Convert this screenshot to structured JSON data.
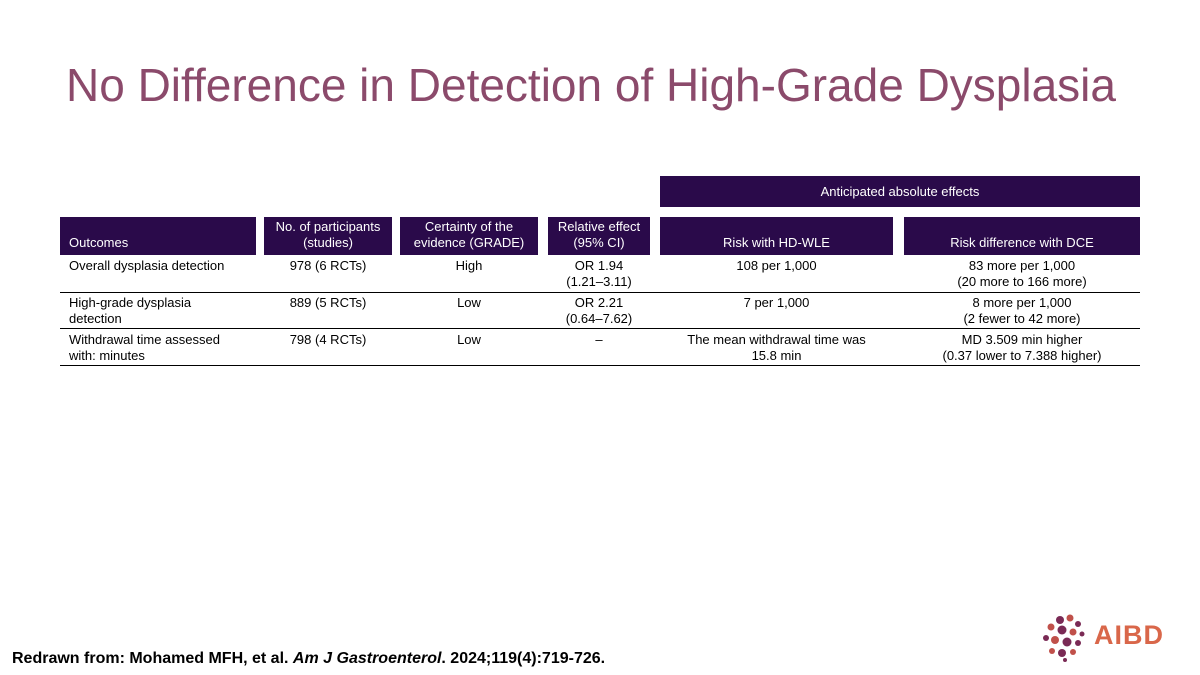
{
  "title": "No Difference in Detection of High-Grade Dysplasia",
  "table": {
    "span_header": "Anticipated absolute effects",
    "headers": {
      "outcomes": "Outcomes",
      "participants_1": "No. of participants",
      "participants_2": "(studies)",
      "certainty_1": "Certainty of the",
      "certainty_2": "evidence (GRADE)",
      "relative_1": "Relative effect",
      "relative_2": "(95% CI)",
      "risk_hdwle": "Risk with HD-WLE",
      "risk_diff": "Risk difference with DCE"
    },
    "rows": [
      {
        "outcome_1": "Overall dysplasia detection",
        "outcome_2": "",
        "participants": "978 (6 RCTs)",
        "certainty": "High",
        "relative_1": "OR 1.94",
        "relative_2": "(1.21–3.11)",
        "risk_hdwle_1": "108 per 1,000",
        "risk_hdwle_2": "",
        "risk_diff_1": "83 more per 1,000",
        "risk_diff_2": "(20 more to 166 more)"
      },
      {
        "outcome_1": "High-grade dysplasia",
        "outcome_2": "detection",
        "participants": "889 (5 RCTs)",
        "certainty": "Low",
        "relative_1": "OR 2.21",
        "relative_2": "(0.64–7.62)",
        "risk_hdwle_1": "7 per 1,000",
        "risk_hdwle_2": "",
        "risk_diff_1": "8 more per 1,000",
        "risk_diff_2": "(2 fewer to 42 more)"
      },
      {
        "outcome_1": "Withdrawal time assessed",
        "outcome_2": "with: minutes",
        "participants": "798 (4 RCTs)",
        "certainty": "Low",
        "relative_1": "–",
        "relative_2": "",
        "risk_hdwle_1": "The mean withdrawal time was",
        "risk_hdwle_2": "15.8 min",
        "risk_diff_1": "MD 3.509 min higher",
        "risk_diff_2": "(0.37 lower to 7.388 higher)"
      }
    ]
  },
  "source": {
    "prefix": "Redrawn from: Mohamed MFH, et al. ",
    "journal": "Am J Gastroenterol",
    "suffix": ". 2024;119(4):719-726."
  },
  "logo": {
    "text": "AIBD",
    "color": "#d9674a",
    "dot_color": "#7a2a55"
  },
  "colors": {
    "title": "#8b4a6b",
    "header_bg": "#2a0a4a"
  }
}
